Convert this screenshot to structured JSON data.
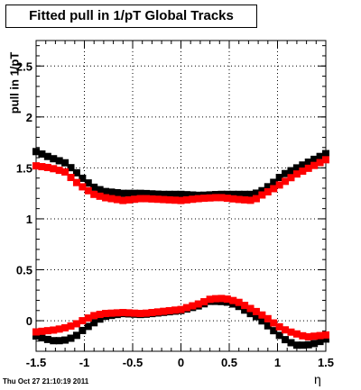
{
  "title": "Fitted pull in 1/pT  Global Tracks",
  "timestamp": "Thu Oct 27 21:10:19 2011",
  "chart_data": {
    "type": "scatter",
    "title": "Fitted pull in 1/pT  Global Tracks",
    "xlabel": "η",
    "ylabel": "pull in 1/pT",
    "xlim": [
      -1.5,
      1.5
    ],
    "ylim": [
      -0.3,
      2.75
    ],
    "x_ticks": [
      -1.5,
      -1,
      -0.5,
      0,
      0.5,
      1,
      1.5
    ],
    "x_tick_labels": [
      "-1.5",
      "-1",
      "-0.5",
      "0",
      "0.5",
      "1",
      "1.5"
    ],
    "y_ticks": [
      0,
      0.5,
      1,
      1.5,
      2,
      2.5
    ],
    "y_tick_labels": [
      "0",
      "0.5",
      "1",
      "1.5",
      "2",
      "2.5"
    ],
    "grid": true,
    "marker": "square",
    "series": [
      {
        "color": "#000000",
        "x": [
          -1.5,
          -1.35,
          -1.2,
          -1.1,
          -1.0,
          -0.9,
          -0.8,
          -0.6,
          -0.4,
          -0.2,
          0.0,
          0.2,
          0.4,
          0.6,
          0.75,
          0.85,
          0.95,
          1.05,
          1.2,
          1.35,
          1.5
        ],
        "y": [
          1.66,
          1.6,
          1.55,
          1.47,
          1.38,
          1.31,
          1.27,
          1.25,
          1.25,
          1.24,
          1.24,
          1.23,
          1.24,
          1.24,
          1.24,
          1.28,
          1.35,
          1.43,
          1.5,
          1.57,
          1.64
        ]
      },
      {
        "color": "#ff0000",
        "x": [
          -1.5,
          -1.35,
          -1.2,
          -1.1,
          -1.0,
          -0.9,
          -0.8,
          -0.6,
          -0.4,
          -0.2,
          0.0,
          0.2,
          0.4,
          0.6,
          0.75,
          0.85,
          0.95,
          1.05,
          1.2,
          1.35,
          1.5
        ],
        "y": [
          1.52,
          1.5,
          1.46,
          1.37,
          1.3,
          1.24,
          1.21,
          1.18,
          1.2,
          1.19,
          1.18,
          1.2,
          1.21,
          1.19,
          1.18,
          1.24,
          1.29,
          1.35,
          1.44,
          1.51,
          1.58
        ]
      },
      {
        "color": "#000000",
        "x": [
          -1.5,
          -1.4,
          -1.3,
          -1.2,
          -1.1,
          -1.0,
          -0.9,
          -0.8,
          -0.6,
          -0.4,
          -0.2,
          0.0,
          0.2,
          0.3,
          0.4,
          0.5,
          0.6,
          0.7,
          0.8,
          0.9,
          1.0,
          1.1,
          1.2,
          1.3,
          1.4,
          1.5
        ],
        "y": [
          -0.15,
          -0.18,
          -0.2,
          -0.19,
          -0.16,
          -0.08,
          -0.02,
          0.04,
          0.07,
          0.06,
          0.08,
          0.1,
          0.15,
          0.19,
          0.19,
          0.18,
          0.14,
          0.08,
          0.03,
          -0.05,
          -0.13,
          -0.2,
          -0.24,
          -0.24,
          -0.22,
          -0.18
        ]
      },
      {
        "color": "#ff0000",
        "x": [
          -1.5,
          -1.4,
          -1.3,
          -1.2,
          -1.1,
          -1.0,
          -0.9,
          -0.8,
          -0.6,
          -0.4,
          -0.2,
          0.0,
          0.2,
          0.3,
          0.4,
          0.5,
          0.6,
          0.7,
          0.8,
          0.9,
          1.0,
          1.1,
          1.2,
          1.3,
          1.4,
          1.5
        ],
        "y": [
          -0.11,
          -0.1,
          -0.09,
          -0.07,
          -0.04,
          0.01,
          0.05,
          0.07,
          0.08,
          0.07,
          0.09,
          0.11,
          0.17,
          0.21,
          0.22,
          0.21,
          0.18,
          0.13,
          0.08,
          0.02,
          -0.05,
          -0.1,
          -0.13,
          -0.16,
          -0.15,
          -0.14
        ]
      }
    ]
  }
}
